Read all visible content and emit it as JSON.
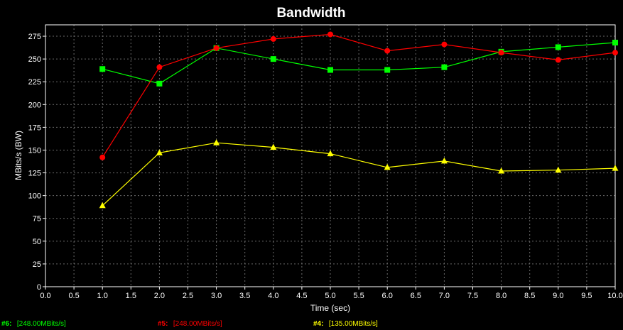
{
  "chart_data": {
    "type": "line",
    "title": "Bandwidth",
    "xlabel": "Time (sec)",
    "ylabel": "MBits/s (BW)",
    "xlim": [
      0.0,
      10.0
    ],
    "ylim": [
      0,
      287.5
    ],
    "grid": true,
    "x_ticks": [
      "0.0",
      "0.5",
      "1.0",
      "1.5",
      "2.0",
      "2.5",
      "3.0",
      "3.5",
      "4.0",
      "4.5",
      "5.0",
      "5.5",
      "6.0",
      "6.5",
      "7.0",
      "7.5",
      "8.0",
      "8.5",
      "9.0",
      "9.5",
      "10.0"
    ],
    "y_ticks": [
      "0",
      "25",
      "50",
      "75",
      "100",
      "125",
      "150",
      "175",
      "200",
      "225",
      "250",
      "275"
    ],
    "x": [
      1.0,
      2.0,
      3.0,
      4.0,
      5.0,
      6.0,
      7.0,
      8.0,
      9.0,
      10.0
    ],
    "series": [
      {
        "key": "#6:",
        "legend_value": "[248.00MBits/s]",
        "color": "#00ff00",
        "marker": "square",
        "values": [
          239,
          223,
          262,
          250,
          238,
          238,
          241,
          258,
          263,
          268
        ]
      },
      {
        "key": "#5:",
        "legend_value": "[248.00MBits/s]",
        "color": "#ff0000",
        "marker": "circle",
        "values": [
          142,
          241,
          262,
          272,
          277,
          259,
          266,
          257,
          249,
          257
        ]
      },
      {
        "key": "#4:",
        "legend_value": "[135.00MBits/s]",
        "color": "#ffff00",
        "marker": "triangle",
        "values": [
          89,
          147,
          158,
          153,
          146,
          131,
          138,
          127,
          128,
          130
        ]
      }
    ]
  }
}
